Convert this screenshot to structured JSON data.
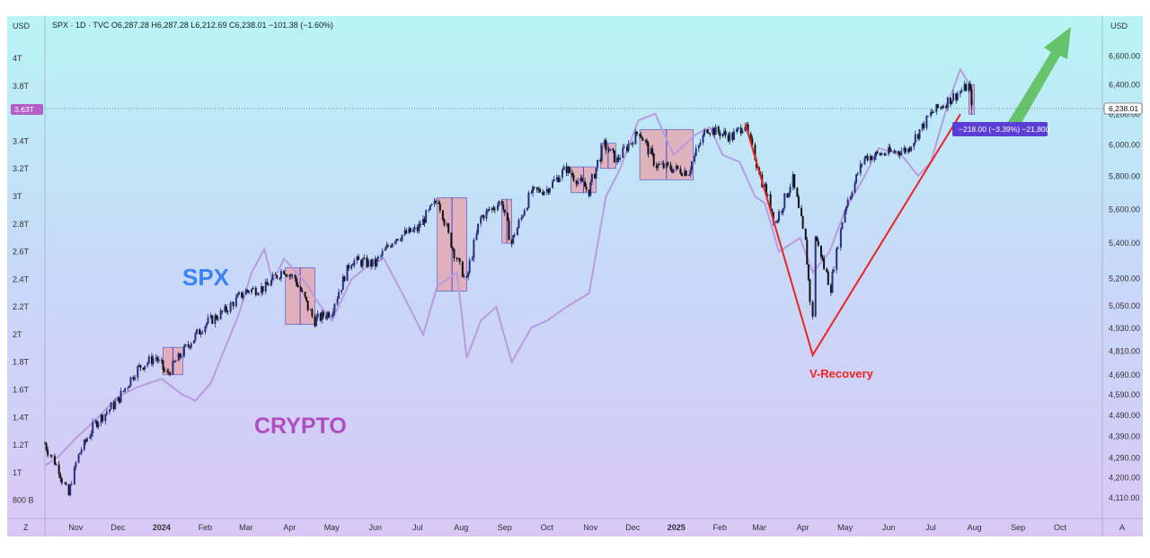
{
  "header": {
    "left_unit": "USD",
    "right_unit": "USD",
    "summary": "SPX · 1D · TVC  O6,287.28  H6,287.28  L6,212.69  C6,238.01  −101.38 (−1.60%)"
  },
  "badges": {
    "left_value": "3.63T",
    "right_value": "6,238.01",
    "measure": "−218.00 (−3.39%) −21,800"
  },
  "corner": {
    "left": "Z",
    "right": "A"
  },
  "colors": {
    "spx_up": "#2a2f7a",
    "spx_down": "#111111",
    "crypto_line": "#b99be0",
    "box_fill": "#e8a2a8",
    "box_stroke": "#4a4ad0",
    "v_line": "#ee2222",
    "arrow": "#5cbf5c",
    "spx_label": "#3b82f6",
    "crypto_label": "#b04cc4",
    "left_badge": "#b35ec8",
    "measure_badge": "#5a3fd6"
  },
  "chart_data": {
    "type": "line",
    "x_axis": {
      "type": "date",
      "range": [
        "2023-10-10",
        "2025-10-31"
      ],
      "ticks": [
        {
          "date": "2023-11-01",
          "label": "Nov"
        },
        {
          "date": "2023-12-01",
          "label": "Dec"
        },
        {
          "date": "2024-01-01",
          "label": "2024"
        },
        {
          "date": "2024-02-01",
          "label": "Feb"
        },
        {
          "date": "2024-03-01",
          "label": "Mar"
        },
        {
          "date": "2024-04-01",
          "label": "Apr"
        },
        {
          "date": "2024-05-01",
          "label": "May"
        },
        {
          "date": "2024-06-01",
          "label": "Jun"
        },
        {
          "date": "2024-07-01",
          "label": "Jul"
        },
        {
          "date": "2024-08-01",
          "label": "Aug"
        },
        {
          "date": "2024-09-01",
          "label": "Sep"
        },
        {
          "date": "2024-10-01",
          "label": "Oct"
        },
        {
          "date": "2024-11-01",
          "label": "Nov"
        },
        {
          "date": "2024-12-01",
          "label": "Dec"
        },
        {
          "date": "2025-01-01",
          "label": "2025"
        },
        {
          "date": "2025-02-01",
          "label": "Feb"
        },
        {
          "date": "2025-03-01",
          "label": "Mar"
        },
        {
          "date": "2025-04-01",
          "label": "Apr"
        },
        {
          "date": "2025-05-01",
          "label": "May"
        },
        {
          "date": "2025-06-01",
          "label": "Jun"
        },
        {
          "date": "2025-07-01",
          "label": "Jul"
        },
        {
          "date": "2025-08-01",
          "label": "Aug"
        },
        {
          "date": "2025-09-01",
          "label": "Sep"
        },
        {
          "date": "2025-10-01",
          "label": "Oct"
        }
      ]
    },
    "left_axis": {
      "unit": "USD",
      "range": [
        0.7,
        4.15
      ],
      "ticks": [
        {
          "value": 4.0,
          "label": "4T"
        },
        {
          "value": 3.8,
          "label": "3.8T"
        },
        {
          "value": 3.4,
          "label": "3.4T"
        },
        {
          "value": 3.2,
          "label": "3.2T"
        },
        {
          "value": 3.0,
          "label": "3T"
        },
        {
          "value": 2.8,
          "label": "2.8T"
        },
        {
          "value": 2.6,
          "label": "2.6T"
        },
        {
          "value": 2.4,
          "label": "2.4T"
        },
        {
          "value": 2.2,
          "label": "2.2T"
        },
        {
          "value": 2.0,
          "label": "2T"
        },
        {
          "value": 1.8,
          "label": "1.8T"
        },
        {
          "value": 1.6,
          "label": "1.6T"
        },
        {
          "value": 1.4,
          "label": "1.4T"
        },
        {
          "value": 1.2,
          "label": "1.2T"
        },
        {
          "value": 1.0,
          "label": "1T"
        },
        {
          "value": 0.8,
          "label": "800 B"
        }
      ]
    },
    "right_axis": {
      "unit": "USD",
      "scale": "log",
      "range": [
        4040,
        6730
      ],
      "ticks": [
        {
          "value": 6600,
          "label": "6,600.00"
        },
        {
          "value": 6400,
          "label": "6,400.00"
        },
        {
          "value": 6200,
          "label": "6,200.00"
        },
        {
          "value": 6000,
          "label": "6,000.00"
        },
        {
          "value": 5800,
          "label": "5,800.00"
        },
        {
          "value": 5600,
          "label": "5,600.00"
        },
        {
          "value": 5400,
          "label": "5,400.00"
        },
        {
          "value": 5200,
          "label": "5,200.00"
        },
        {
          "value": 5050,
          "label": "5,050.00"
        },
        {
          "value": 4930,
          "label": "4,930.00"
        },
        {
          "value": 4810,
          "label": "4,810.00"
        },
        {
          "value": 4690,
          "label": "4,690.00"
        },
        {
          "value": 4590,
          "label": "4,590.00"
        },
        {
          "value": 4490,
          "label": "4,490.00"
        },
        {
          "value": 4390,
          "label": "4,390.00"
        },
        {
          "value": 4290,
          "label": "4,290.00"
        },
        {
          "value": 4200,
          "label": "4,200.00"
        },
        {
          "value": 4110,
          "label": "4,110.00"
        }
      ]
    },
    "series": [
      {
        "name": "SPX",
        "axis": "right",
        "style": "candles",
        "points": [
          [
            "2023-10-10",
            4358
          ],
          [
            "2023-10-20",
            4240
          ],
          [
            "2023-10-27",
            4120
          ],
          [
            "2023-11-03",
            4300
          ],
          [
            "2023-11-15",
            4450
          ],
          [
            "2023-12-01",
            4560
          ],
          [
            "2023-12-15",
            4720
          ],
          [
            "2023-12-28",
            4780
          ],
          [
            "2024-01-05",
            4690
          ],
          [
            "2024-01-20",
            4840
          ],
          [
            "2024-02-01",
            4950
          ],
          [
            "2024-02-15",
            5020
          ],
          [
            "2024-03-01",
            5130
          ],
          [
            "2024-03-15",
            5150
          ],
          [
            "2024-03-28",
            5250
          ],
          [
            "2024-04-05",
            5200
          ],
          [
            "2024-04-19",
            4970
          ],
          [
            "2024-05-01",
            5020
          ],
          [
            "2024-05-15",
            5300
          ],
          [
            "2024-06-01",
            5280
          ],
          [
            "2024-06-15",
            5430
          ],
          [
            "2024-07-01",
            5480
          ],
          [
            "2024-07-16",
            5660
          ],
          [
            "2024-07-25",
            5400
          ],
          [
            "2024-08-05",
            5180
          ],
          [
            "2024-08-15",
            5550
          ],
          [
            "2024-08-30",
            5650
          ],
          [
            "2024-09-06",
            5400
          ],
          [
            "2024-09-20",
            5700
          ],
          [
            "2024-10-01",
            5720
          ],
          [
            "2024-10-15",
            5850
          ],
          [
            "2024-10-31",
            5710
          ],
          [
            "2024-11-11",
            6000
          ],
          [
            "2024-11-20",
            5900
          ],
          [
            "2024-12-06",
            6090
          ],
          [
            "2024-12-18",
            5870
          ],
          [
            "2025-01-10",
            5830
          ],
          [
            "2025-01-23",
            6110
          ],
          [
            "2025-02-10",
            6050
          ],
          [
            "2025-02-19",
            6140
          ],
          [
            "2025-03-01",
            5840
          ],
          [
            "2025-03-13",
            5520
          ],
          [
            "2025-03-25",
            5780
          ],
          [
            "2025-04-03",
            5400
          ],
          [
            "2025-04-08",
            4980
          ],
          [
            "2025-04-10",
            5450
          ],
          [
            "2025-04-21",
            5150
          ],
          [
            "2025-05-01",
            5600
          ],
          [
            "2025-05-15",
            5920
          ],
          [
            "2025-06-01",
            5950
          ],
          [
            "2025-06-15",
            5970
          ],
          [
            "2025-07-01",
            6200
          ],
          [
            "2025-07-15",
            6300
          ],
          [
            "2025-07-28",
            6390
          ],
          [
            "2025-08-01",
            6238
          ]
        ]
      },
      {
        "name": "CRYPTO",
        "axis": "left",
        "style": "line",
        "points": [
          [
            "2023-10-10",
            1.05
          ],
          [
            "2023-10-20",
            1.12
          ],
          [
            "2023-11-01",
            1.25
          ],
          [
            "2023-11-15",
            1.38
          ],
          [
            "2023-12-01",
            1.55
          ],
          [
            "2023-12-15",
            1.62
          ],
          [
            "2024-01-01",
            1.68
          ],
          [
            "2024-01-15",
            1.57
          ],
          [
            "2024-01-25",
            1.52
          ],
          [
            "2024-02-05",
            1.65
          ],
          [
            "2024-02-15",
            1.9
          ],
          [
            "2024-02-25",
            2.15
          ],
          [
            "2024-03-05",
            2.45
          ],
          [
            "2024-03-14",
            2.62
          ],
          [
            "2024-03-20",
            2.38
          ],
          [
            "2024-03-28",
            2.55
          ],
          [
            "2024-04-12",
            2.38
          ],
          [
            "2024-04-20",
            2.25
          ],
          [
            "2024-05-01",
            2.1
          ],
          [
            "2024-05-15",
            2.4
          ],
          [
            "2024-05-27",
            2.5
          ],
          [
            "2024-06-07",
            2.55
          ],
          [
            "2024-06-20",
            2.3
          ],
          [
            "2024-07-05",
            2.0
          ],
          [
            "2024-07-15",
            2.35
          ],
          [
            "2024-07-29",
            2.45
          ],
          [
            "2024-08-05",
            1.83
          ],
          [
            "2024-08-15",
            2.1
          ],
          [
            "2024-08-26",
            2.2
          ],
          [
            "2024-09-06",
            1.8
          ],
          [
            "2024-09-20",
            2.05
          ],
          [
            "2024-10-01",
            2.1
          ],
          [
            "2024-10-15",
            2.2
          ],
          [
            "2024-10-31",
            2.3
          ],
          [
            "2024-11-06",
            2.65
          ],
          [
            "2024-11-12",
            3.0
          ],
          [
            "2024-11-22",
            3.2
          ],
          [
            "2024-12-05",
            3.55
          ],
          [
            "2024-12-17",
            3.6
          ],
          [
            "2024-12-30",
            3.3
          ],
          [
            "2025-01-15",
            3.45
          ],
          [
            "2025-01-25",
            3.5
          ],
          [
            "2025-02-03",
            3.3
          ],
          [
            "2025-02-15",
            3.25
          ],
          [
            "2025-02-26",
            3.0
          ],
          [
            "2025-03-05",
            2.95
          ],
          [
            "2025-03-15",
            2.6
          ],
          [
            "2025-03-30",
            2.7
          ],
          [
            "2025-04-08",
            2.45
          ],
          [
            "2025-04-20",
            2.6
          ],
          [
            "2025-05-01",
            2.9
          ],
          [
            "2025-05-15",
            3.15
          ],
          [
            "2025-05-25",
            3.35
          ],
          [
            "2025-06-10",
            3.3
          ],
          [
            "2025-06-22",
            3.15
          ],
          [
            "2025-07-01",
            3.25
          ],
          [
            "2025-07-14",
            3.7
          ],
          [
            "2025-07-22",
            3.92
          ],
          [
            "2025-07-28",
            3.82
          ],
          [
            "2025-08-01",
            3.63
          ]
        ]
      }
    ],
    "drawdown_boxes": [
      {
        "from": "2024-01-02",
        "to": "2024-01-16",
        "high": 4830,
        "low": 4690
      },
      {
        "from": "2024-03-29",
        "to": "2024-04-19",
        "high": 5260,
        "low": 4950
      },
      {
        "from": "2024-07-15",
        "to": "2024-08-05",
        "high": 5670,
        "low": 5130
      },
      {
        "from": "2024-08-30",
        "to": "2024-09-06",
        "high": 5660,
        "low": 5400
      },
      {
        "from": "2024-10-18",
        "to": "2024-11-05",
        "high": 5860,
        "low": 5700
      },
      {
        "from": "2024-11-08",
        "to": "2024-11-19",
        "high": 6010,
        "low": 5850
      },
      {
        "from": "2024-12-06",
        "to": "2025-01-13",
        "high": 6100,
        "low": 5780
      },
      {
        "from": "2025-07-28",
        "to": "2025-08-01",
        "high": 6400,
        "low": 6200
      }
    ],
    "annotations": {
      "spx_label": "SPX",
      "crypto_label": "CRYPTO",
      "v_recovery": "V-Recovery",
      "v_points": [
        [
          "2025-02-19",
          6140
        ],
        [
          "2025-04-08",
          4790
        ],
        [
          "2025-07-22",
          6200
        ]
      ]
    }
  }
}
